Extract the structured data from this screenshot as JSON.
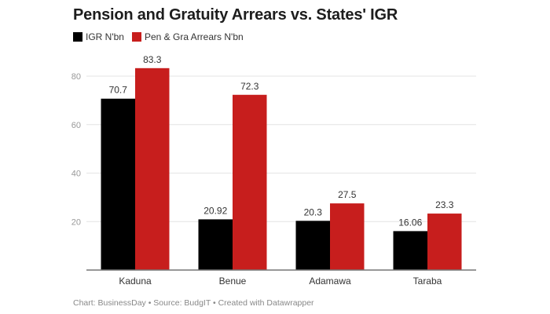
{
  "chart_data": {
    "type": "bar",
    "title": "Pension and Gratuity Arrears vs. States' IGR",
    "categories": [
      "Kaduna",
      "Benue",
      "Adamawa",
      "Taraba"
    ],
    "series": [
      {
        "name": "IGR N'bn",
        "color": "#000000",
        "values": [
          70.7,
          20.92,
          20.3,
          16.06
        ],
        "labels": [
          "70.7",
          "20.92",
          "20.3",
          "16.06"
        ]
      },
      {
        "name": "Pen & Gra Arrears N'bn",
        "color": "#c71e1d",
        "values": [
          83.3,
          72.3,
          27.5,
          23.3
        ],
        "labels": [
          "83.3",
          "72.3",
          "27.5",
          "23.3"
        ]
      }
    ],
    "yticks": [
      20,
      40,
      60,
      80
    ],
    "ylim": [
      0,
      80
    ],
    "grid": true,
    "legend": "top-left",
    "xlabel": "",
    "ylabel": ""
  },
  "footer": "Chart: BusinessDay • Source: BudgIT • Created with Datawrapper"
}
